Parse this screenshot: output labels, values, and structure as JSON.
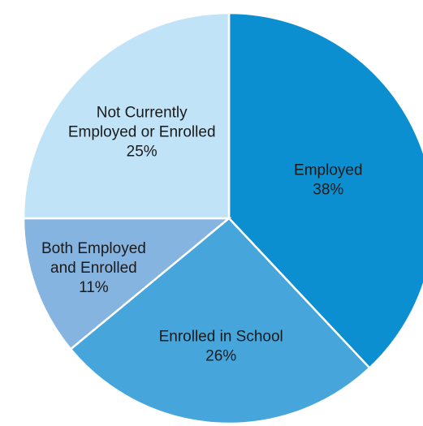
{
  "chart_data": {
    "type": "pie",
    "start": "12 o'clock",
    "direction": "clockwise",
    "slices": [
      {
        "label_lines": [
          "Employed"
        ],
        "value": 38,
        "value_text": "38%",
        "color": "#0B8FD0"
      },
      {
        "label_lines": [
          "Enrolled in School"
        ],
        "value": 26,
        "value_text": "26%",
        "color": "#46A6DC"
      },
      {
        "label_lines": [
          "Both Employed",
          "and Enrolled"
        ],
        "value": 11,
        "value_text": "11%",
        "color": "#86B4E0"
      },
      {
        "label_lines": [
          "Not Currently",
          "Employed or Enrolled"
        ],
        "value": 25,
        "value_text": "25%",
        "color": "#C1E3F7"
      }
    ]
  }
}
